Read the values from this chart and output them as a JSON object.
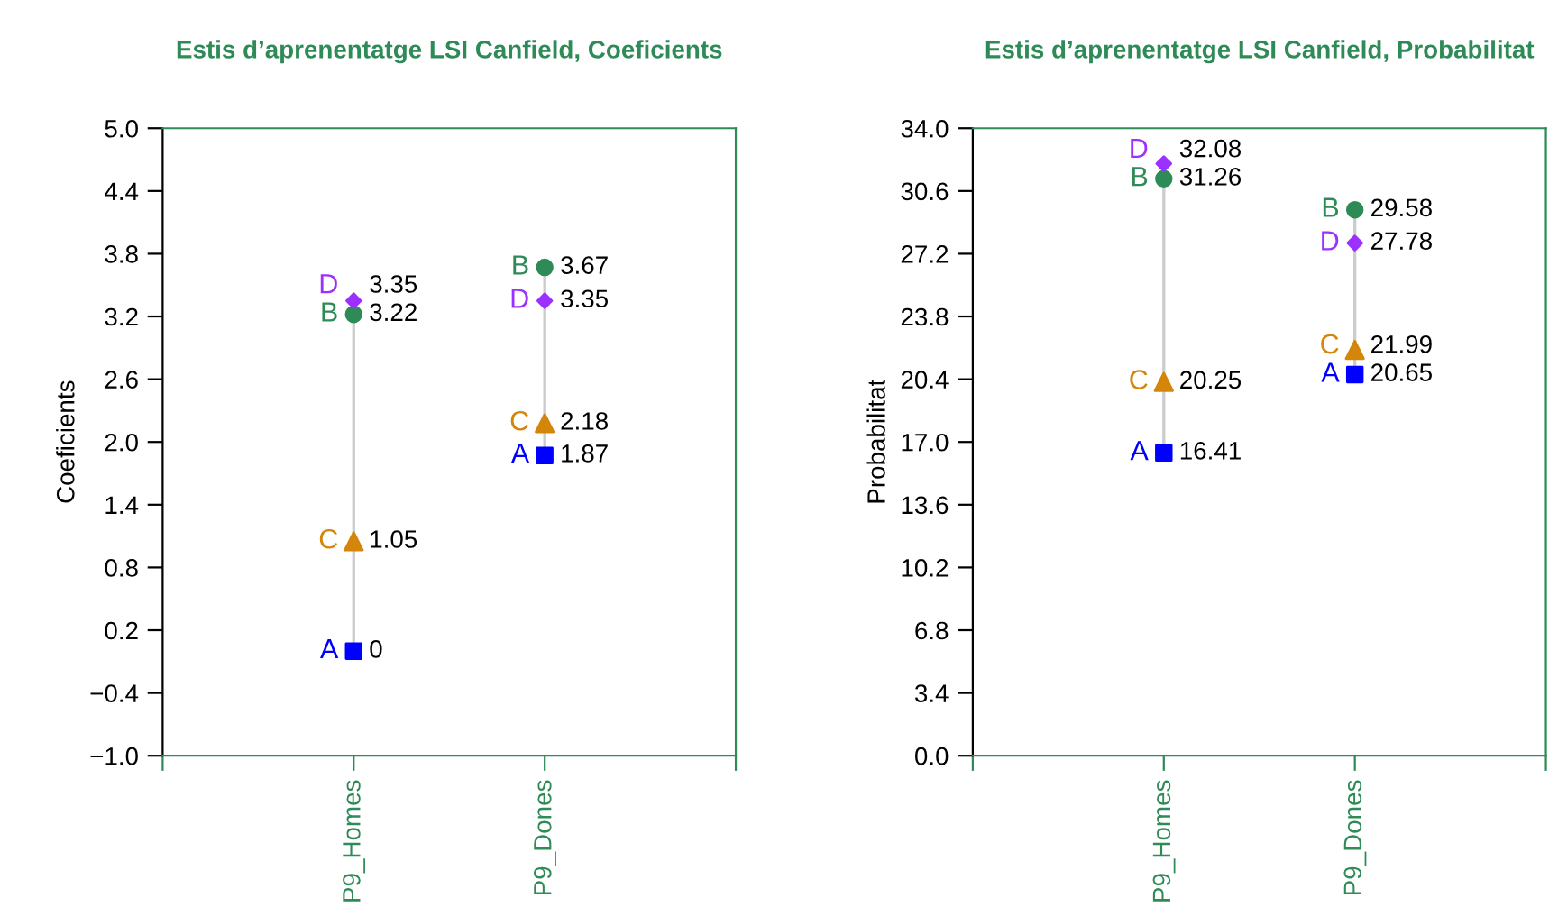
{
  "chart_data": [
    {
      "type": "scatter",
      "title": "Estis d’aprenentatge LSI Canfield, Coeficients",
      "ylabel": "Coeficients",
      "categories": [
        "P9_Homes",
        "P9_Dones"
      ],
      "ylim": [
        -1.0,
        5.0
      ],
      "yticks": [
        {
          "value": -1.0,
          "label": "−1.0"
        },
        {
          "value": -0.4,
          "label": "−0.4"
        },
        0.2,
        0.8,
        1.4,
        {
          "value": 2.0,
          "label": "2.0"
        },
        2.6,
        3.2,
        3.8,
        4.4,
        {
          "value": 5.0,
          "label": "5.0"
        }
      ],
      "data_labels": true,
      "grid": false,
      "legend": false,
      "series": [
        {
          "name": "A",
          "color": "#0000ff",
          "marker": "square",
          "values": [
            0,
            1.87
          ]
        },
        {
          "name": "B",
          "color": "#2e8b57",
          "marker": "circle",
          "values": [
            3.22,
            3.67
          ]
        },
        {
          "name": "C",
          "color": "#d4860b",
          "marker": "triangle",
          "values": [
            1.05,
            2.18
          ]
        },
        {
          "name": "D",
          "color": "#9b30ff",
          "marker": "diamond",
          "values": [
            3.35,
            3.35
          ]
        }
      ]
    },
    {
      "type": "scatter",
      "title": "Estis d’aprenentatge LSI Canfield, Probabilitat",
      "ylabel": "Probabilitat",
      "categories": [
        "P9_Homes",
        "P9_Dones"
      ],
      "ylim": [
        0.0,
        34.0
      ],
      "yticks": [
        {
          "value": 0.0,
          "label": "0.0"
        },
        3.4,
        6.8,
        10.2,
        13.6,
        {
          "value": 17.0,
          "label": "17.0"
        },
        20.4,
        23.8,
        27.2,
        30.6,
        {
          "value": 34.0,
          "label": "34.0"
        }
      ],
      "data_labels": true,
      "grid": false,
      "legend": false,
      "series": [
        {
          "name": "A",
          "color": "#0000ff",
          "marker": "square",
          "values": [
            16.41,
            20.65
          ]
        },
        {
          "name": "B",
          "color": "#2e8b57",
          "marker": "circle",
          "values": [
            31.26,
            29.58
          ]
        },
        {
          "name": "C",
          "color": "#d4860b",
          "marker": "triangle",
          "values": [
            20.25,
            21.99
          ]
        },
        {
          "name": "D",
          "color": "#9b30ff",
          "marker": "diamond",
          "values": [
            32.08,
            27.78
          ]
        }
      ]
    }
  ]
}
